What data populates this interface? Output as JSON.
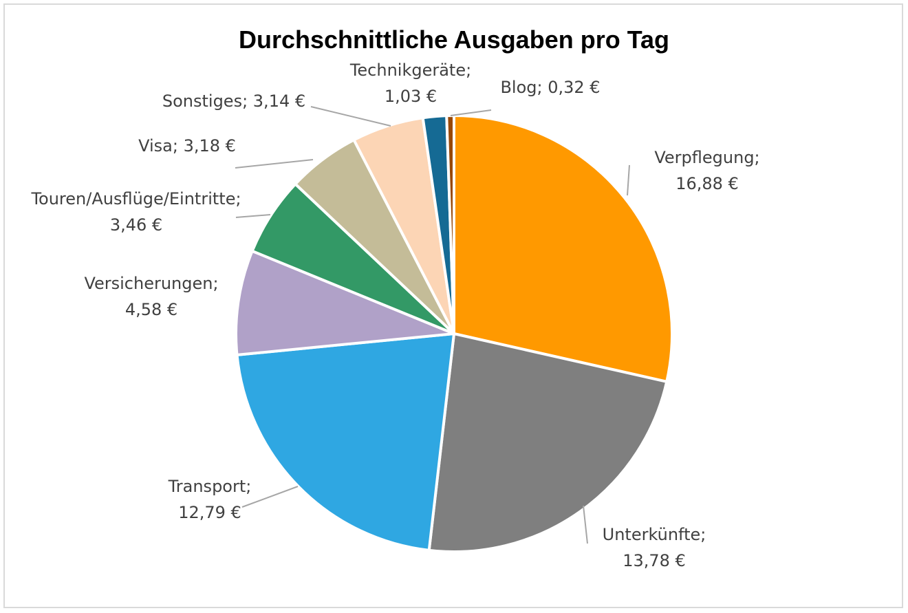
{
  "chart_data": {
    "type": "pie",
    "title": "Durchschnittliche Ausgaben pro Tag",
    "unit": "€",
    "slices": [
      {
        "name": "Verpflegung",
        "value": 16.88,
        "value_label": "16,88 €",
        "color": "#ff9900"
      },
      {
        "name": "Unterkünfte",
        "value": 13.78,
        "value_label": "13,78 €",
        "color": "#7f7f7f"
      },
      {
        "name": "Transport",
        "value": 12.79,
        "value_label": "12,79 €",
        "color": "#2fa7e2"
      },
      {
        "name": "Versicherungen",
        "value": 4.58,
        "value_label": "4,58 €",
        "color": "#b0a1c8"
      },
      {
        "name": "Touren/Ausflüge/Eintritte",
        "value": 3.46,
        "value_label": "3,46 €",
        "color": "#339966"
      },
      {
        "name": "Visa",
        "value": 3.18,
        "value_label": "3,18 €",
        "color": "#c4bc98"
      },
      {
        "name": "Sonstiges",
        "value": 3.14,
        "value_label": "3,14 €",
        "color": "#fcd5b5"
      },
      {
        "name": "Technikgeräte",
        "value": 1.03,
        "value_label": "1,03 €",
        "color": "#156a94"
      },
      {
        "name": "Blog",
        "value": 0.32,
        "value_label": "0,32 €",
        "color": "#984807"
      }
    ]
  }
}
